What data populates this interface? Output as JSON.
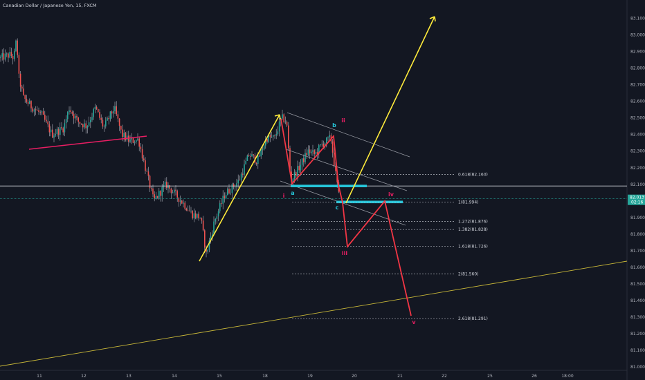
{
  "chart_data": {
    "type": "candlestick",
    "title": "Canadian Dollar / Japanese Yen, 15, FXCM",
    "x_ticks": [
      "11",
      "12",
      "13",
      "14",
      "15",
      "18",
      "19",
      "20",
      "21",
      "22",
      "25",
      "26",
      "18:00"
    ],
    "y_ticks": [
      "81.000",
      "81.100",
      "81.200",
      "81.300",
      "81.400",
      "81.500",
      "81.600",
      "81.700",
      "81.800",
      "81.900",
      "82.000",
      "82.100",
      "82.200",
      "82.300",
      "82.400",
      "82.500",
      "82.600",
      "82.700",
      "82.800",
      "82.900",
      "83.000",
      "83.100",
      "83.200"
    ],
    "ylim": [
      80.98,
      83.21
    ],
    "current_price": {
      "value": "82.013",
      "countdown": "02:16",
      "color": "#26a69a"
    },
    "horizontal_level": 82.09,
    "fib_levels": [
      {
        "ratio_label": "0.618(82.160)",
        "price": 82.16
      },
      {
        "ratio_label": "1(81.994)",
        "price": 81.994
      },
      {
        "ratio_label": "1.272(81.876)",
        "price": 81.876
      },
      {
        "ratio_label": "1.382(81.828)",
        "price": 81.828
      },
      {
        "ratio_label": "1.618(81.726)",
        "price": 81.726
      },
      {
        "ratio_label": "2(81.560)",
        "price": 81.56
      },
      {
        "ratio_label": "2.618(81.291)",
        "price": 81.291
      }
    ],
    "wave_labels": [
      {
        "text": "i",
        "color": "#e91e63"
      },
      {
        "text": "ii",
        "color": "#e91e63"
      },
      {
        "text": "iii",
        "color": "#e91e63"
      },
      {
        "text": "iv",
        "color": "#e91e63"
      },
      {
        "text": "v",
        "color": "#e91e63"
      },
      {
        "text": "a",
        "color": "#26c6da"
      },
      {
        "text": "b",
        "color": "#26c6da"
      },
      {
        "text": "c",
        "color": "#26c6da"
      }
    ],
    "colors": {
      "background": "#131722",
      "up_candle": "#26a69a",
      "down_candle": "#ef5350",
      "wick": "#b2b5be",
      "projection_bull": "#ffeb3b",
      "projection_bear": "#f23645",
      "zone": "#26c6da",
      "channel": "#9598a1"
    }
  }
}
